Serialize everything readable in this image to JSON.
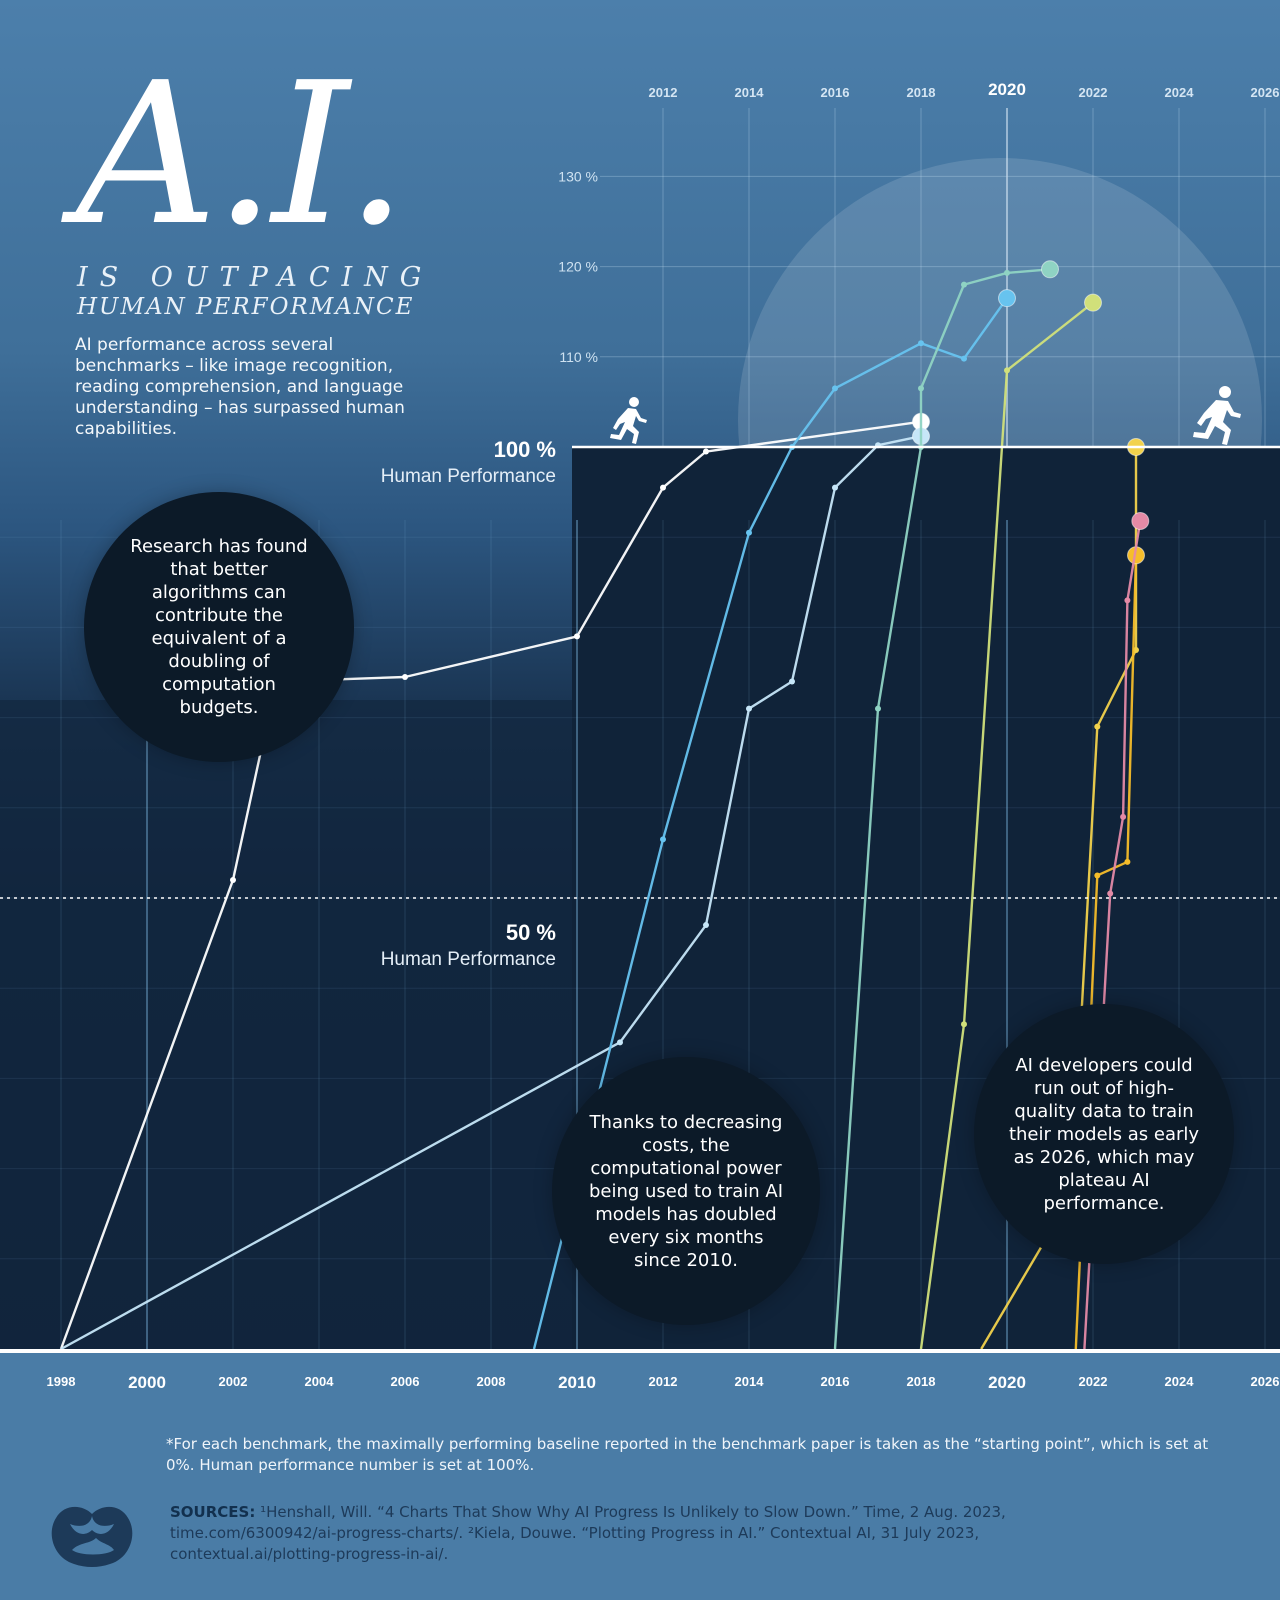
{
  "title": {
    "main": "A.I.",
    "line1": "IS OUTPACING",
    "line2": "HUMAN PERFORMANCE"
  },
  "intro": "AI performance across several benchmarks – like image recognition, reading comprehension, and language understanding – has surpassed human capabilities.",
  "callouts": {
    "algorithms": "Research has found that better algorithms can contribute the equivalent of a doubling of computation budgets.",
    "compute": "Thanks to decreasing costs, the computational power being used to train AI models has doubled every six months since 2010.",
    "data": "AI developers could run out of high-quality data to train their models as early as 2026, which may plateau AI performance."
  },
  "reference_lines": {
    "human_100_pct": "100 %",
    "human_100_label": "Human Performance",
    "human_50_pct": "50 %",
    "human_50_label": "Human Performance"
  },
  "footnote": "*For each benchmark, the maximally performing baseline reported in the benchmark paper is taken as the “starting point”, which is set at 0%. Human performance number is set at 100%.",
  "sources": {
    "label": "SOURCES:",
    "text": " ¹Henshall, Will. “4 Charts That Show Why AI Progress Is Unlikely to Slow Down.” Time, 2 Aug. 2023, time.com/6300942/ai-progress-charts/.  ²Kiela, Douwe. “Plotting Progress in AI.” Contextual AI, 31 July 2023, contextual.ai/plotting-progress-in-ai/."
  },
  "icons": [
    "runner-female-icon",
    "runner-male-icon",
    "visual-capitalist-logo-icon"
  ],
  "colors": {
    "white_series": "#ffffff",
    "lightblue_series": "#c6e6f8",
    "blue_series": "#67c3ef",
    "teal_series": "#8fd3c3",
    "cyan_series": "#9fe0e8",
    "lime_series": "#d1e07a",
    "yellow_series": "#f2d24c",
    "orange_series": "#f6bd2a",
    "pink_series": "#e48aa6"
  },
  "chart_data": {
    "type": "line",
    "xlabel": "",
    "ylabel": "",
    "xlim": [
      1998,
      2026
    ],
    "ylim": [
      0,
      130
    ],
    "x_ticks_bottom": [
      "1998",
      "2000",
      "2002",
      "2004",
      "2006",
      "2008",
      "2010",
      "2012",
      "2014",
      "2016",
      "2018",
      "2020",
      "2022",
      "2024",
      "2026"
    ],
    "x_ticks_top": [
      "2012",
      "2014",
      "2016",
      "2018",
      "2020",
      "2022",
      "2024",
      "2026"
    ],
    "y_ticks": [
      "110 %",
      "120 %",
      "130 %"
    ],
    "y_tick_values": [
      110,
      120,
      130
    ],
    "reference_values": [
      100,
      50
    ],
    "series": [
      {
        "color": "white",
        "points": [
          [
            1998,
            0
          ],
          [
            2002,
            52
          ],
          [
            2003,
            74
          ],
          [
            2006,
            74.5
          ],
          [
            2010,
            79
          ],
          [
            2012,
            95.5
          ],
          [
            2013,
            99.5
          ],
          [
            2018,
            102.8
          ]
        ]
      },
      {
        "color": "lightblue",
        "points": [
          [
            1998,
            0
          ],
          [
            2011,
            34
          ],
          [
            2013,
            47
          ],
          [
            2014,
            71
          ],
          [
            2015,
            74
          ],
          [
            2016,
            95.5
          ],
          [
            2017,
            100.2
          ],
          [
            2018,
            101.2
          ]
        ]
      },
      {
        "color": "blue",
        "points": [
          [
            2009,
            0
          ],
          [
            2012,
            56.5
          ],
          [
            2014,
            90.5
          ],
          [
            2015,
            100
          ],
          [
            2016,
            106.5
          ],
          [
            2018,
            111.5
          ],
          [
            2019,
            109.8
          ],
          [
            2020,
            116.5
          ]
        ]
      },
      {
        "color": "teal",
        "points": [
          [
            2016,
            0
          ],
          [
            2017,
            71
          ],
          [
            2018,
            100
          ],
          [
            2018,
            106.5
          ],
          [
            2019,
            118
          ],
          [
            2020,
            119.3
          ],
          [
            2021,
            119.7
          ]
        ]
      },
      {
        "color": "lime",
        "points": [
          [
            2018,
            0
          ],
          [
            2019,
            36
          ],
          [
            2020,
            108.5
          ],
          [
            2022,
            116
          ]
        ]
      },
      {
        "color": "yellow",
        "points": [
          [
            2019.4,
            0
          ],
          [
            2021.5,
            17
          ],
          [
            2022.1,
            69
          ],
          [
            2023,
            77.5
          ],
          [
            2023,
            100
          ]
        ]
      },
      {
        "color": "orange",
        "points": [
          [
            2021.6,
            0
          ],
          [
            2022.1,
            52.5
          ],
          [
            2022.8,
            54
          ],
          [
            2023,
            88
          ]
        ]
      },
      {
        "color": "pink",
        "points": [
          [
            2021.8,
            0
          ],
          [
            2022.4,
            50.5
          ],
          [
            2022.7,
            59
          ],
          [
            2022.8,
            83
          ],
          [
            2023.1,
            91.8
          ]
        ]
      }
    ]
  }
}
